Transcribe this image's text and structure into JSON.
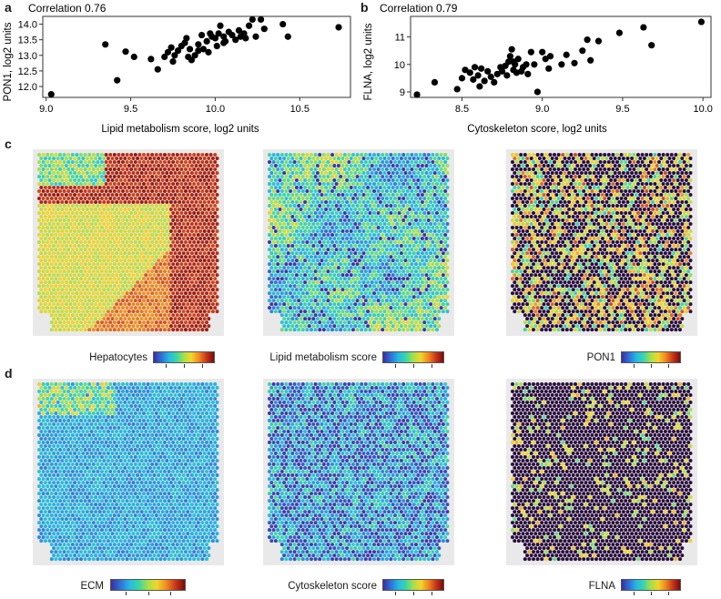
{
  "panel_letters": {
    "a": "a",
    "b": "b",
    "c": "c",
    "d": "d"
  },
  "colormap": [
    "#3b2ea0",
    "#2f6fd6",
    "#25b8e6",
    "#39d6a8",
    "#a6e04a",
    "#f2d52a",
    "#f08a1f",
    "#c8361a",
    "#7a0a0a"
  ],
  "background_tissue_color": "#e9e9e9",
  "scatter_point_color": "#000000",
  "chart_data": [
    {
      "type": "scatter",
      "panel": "a",
      "title": "Correlation 0.76",
      "xlabel": "Lipid metabolism score, log2 units",
      "ylabel": "PON1, log2 units",
      "xlim": [
        8.98,
        10.8
      ],
      "ylim": [
        11.65,
        14.25
      ],
      "xticks": [
        "9.0",
        "9.5",
        "10.0",
        "10.5"
      ],
      "yticks": [
        "12.0",
        "12.5",
        "13.0",
        "13.5",
        "14.0"
      ],
      "x": [
        9.03,
        9.35,
        9.42,
        9.47,
        9.52,
        9.62,
        9.66,
        9.7,
        9.72,
        9.74,
        9.76,
        9.78,
        9.8,
        9.82,
        9.83,
        9.85,
        9.86,
        9.88,
        9.9,
        9.92,
        9.93,
        9.95,
        9.96,
        9.97,
        9.98,
        10.0,
        10.01,
        10.02,
        10.03,
        10.05,
        10.06,
        10.08,
        10.1,
        10.12,
        10.14,
        10.15,
        10.17,
        10.18,
        10.2,
        10.22,
        10.24,
        10.27,
        10.29,
        10.4,
        10.43,
        10.73,
        9.75,
        9.9,
        10.05,
        9.84
      ],
      "y": [
        11.75,
        13.35,
        12.2,
        13.12,
        12.95,
        12.88,
        12.55,
        12.95,
        13.1,
        13.25,
        13.0,
        13.15,
        13.3,
        13.4,
        13.55,
        13.2,
        12.85,
        13.0,
        13.35,
        13.65,
        13.2,
        13.45,
        13.1,
        13.7,
        13.6,
        13.55,
        13.3,
        13.7,
        13.95,
        13.6,
        13.45,
        13.75,
        13.65,
        13.5,
        13.8,
        13.6,
        13.7,
        13.55,
        13.95,
        14.15,
        13.6,
        14.15,
        13.85,
        14.0,
        13.6,
        13.9,
        12.8,
        13.15,
        13.4,
        12.95
      ]
    },
    {
      "type": "scatter",
      "panel": "b",
      "title": "Correlation 0.79",
      "xlabel": "Cytoskeleton score, log2 units",
      "ylabel": "FLNA, log2 units",
      "xlim": [
        8.18,
        10.05
      ],
      "ylim": [
        8.8,
        11.75
      ],
      "xticks": [
        "8.5",
        "9.0",
        "9.5",
        "10.0"
      ],
      "yticks": [
        "9",
        "10",
        "11"
      ],
      "x": [
        8.22,
        8.33,
        8.47,
        8.5,
        8.52,
        8.55,
        8.57,
        8.58,
        8.6,
        8.61,
        8.62,
        8.64,
        8.66,
        8.68,
        8.7,
        8.72,
        8.74,
        8.75,
        8.77,
        8.78,
        8.79,
        8.8,
        8.81,
        8.82,
        8.83,
        8.84,
        8.85,
        8.87,
        8.88,
        8.9,
        8.91,
        8.93,
        8.95,
        8.97,
        9.0,
        9.02,
        9.04,
        9.05,
        9.12,
        9.15,
        9.2,
        9.25,
        9.28,
        9.3,
        9.35,
        9.48,
        9.63,
        9.68,
        9.99,
        8.82
      ],
      "y": [
        8.9,
        9.35,
        9.1,
        9.5,
        9.8,
        9.7,
        9.45,
        9.9,
        9.6,
        9.2,
        9.85,
        9.4,
        9.75,
        9.55,
        9.35,
        9.65,
        9.9,
        9.75,
        9.95,
        9.6,
        10.1,
        10.3,
        10.55,
        9.8,
        10.0,
        9.7,
        10.2,
        9.75,
        9.9,
        10.0,
        9.65,
        10.45,
        10.0,
        9.0,
        10.45,
        10.2,
        9.85,
        10.3,
        10.0,
        10.35,
        10.05,
        10.5,
        10.9,
        10.15,
        10.85,
        11.15,
        11.35,
        10.7,
        11.55,
        10.1
      ]
    }
  ],
  "maps": [
    {
      "label": "Hepatocytes",
      "row": "c"
    },
    {
      "label": "Lipid metabolism score",
      "row": "c"
    },
    {
      "label": "PON1",
      "row": "c"
    },
    {
      "label": "ECM",
      "row": "d"
    },
    {
      "label": "Cytoskeleton score",
      "row": "d"
    },
    {
      "label": "FLNA",
      "row": "d"
    }
  ]
}
